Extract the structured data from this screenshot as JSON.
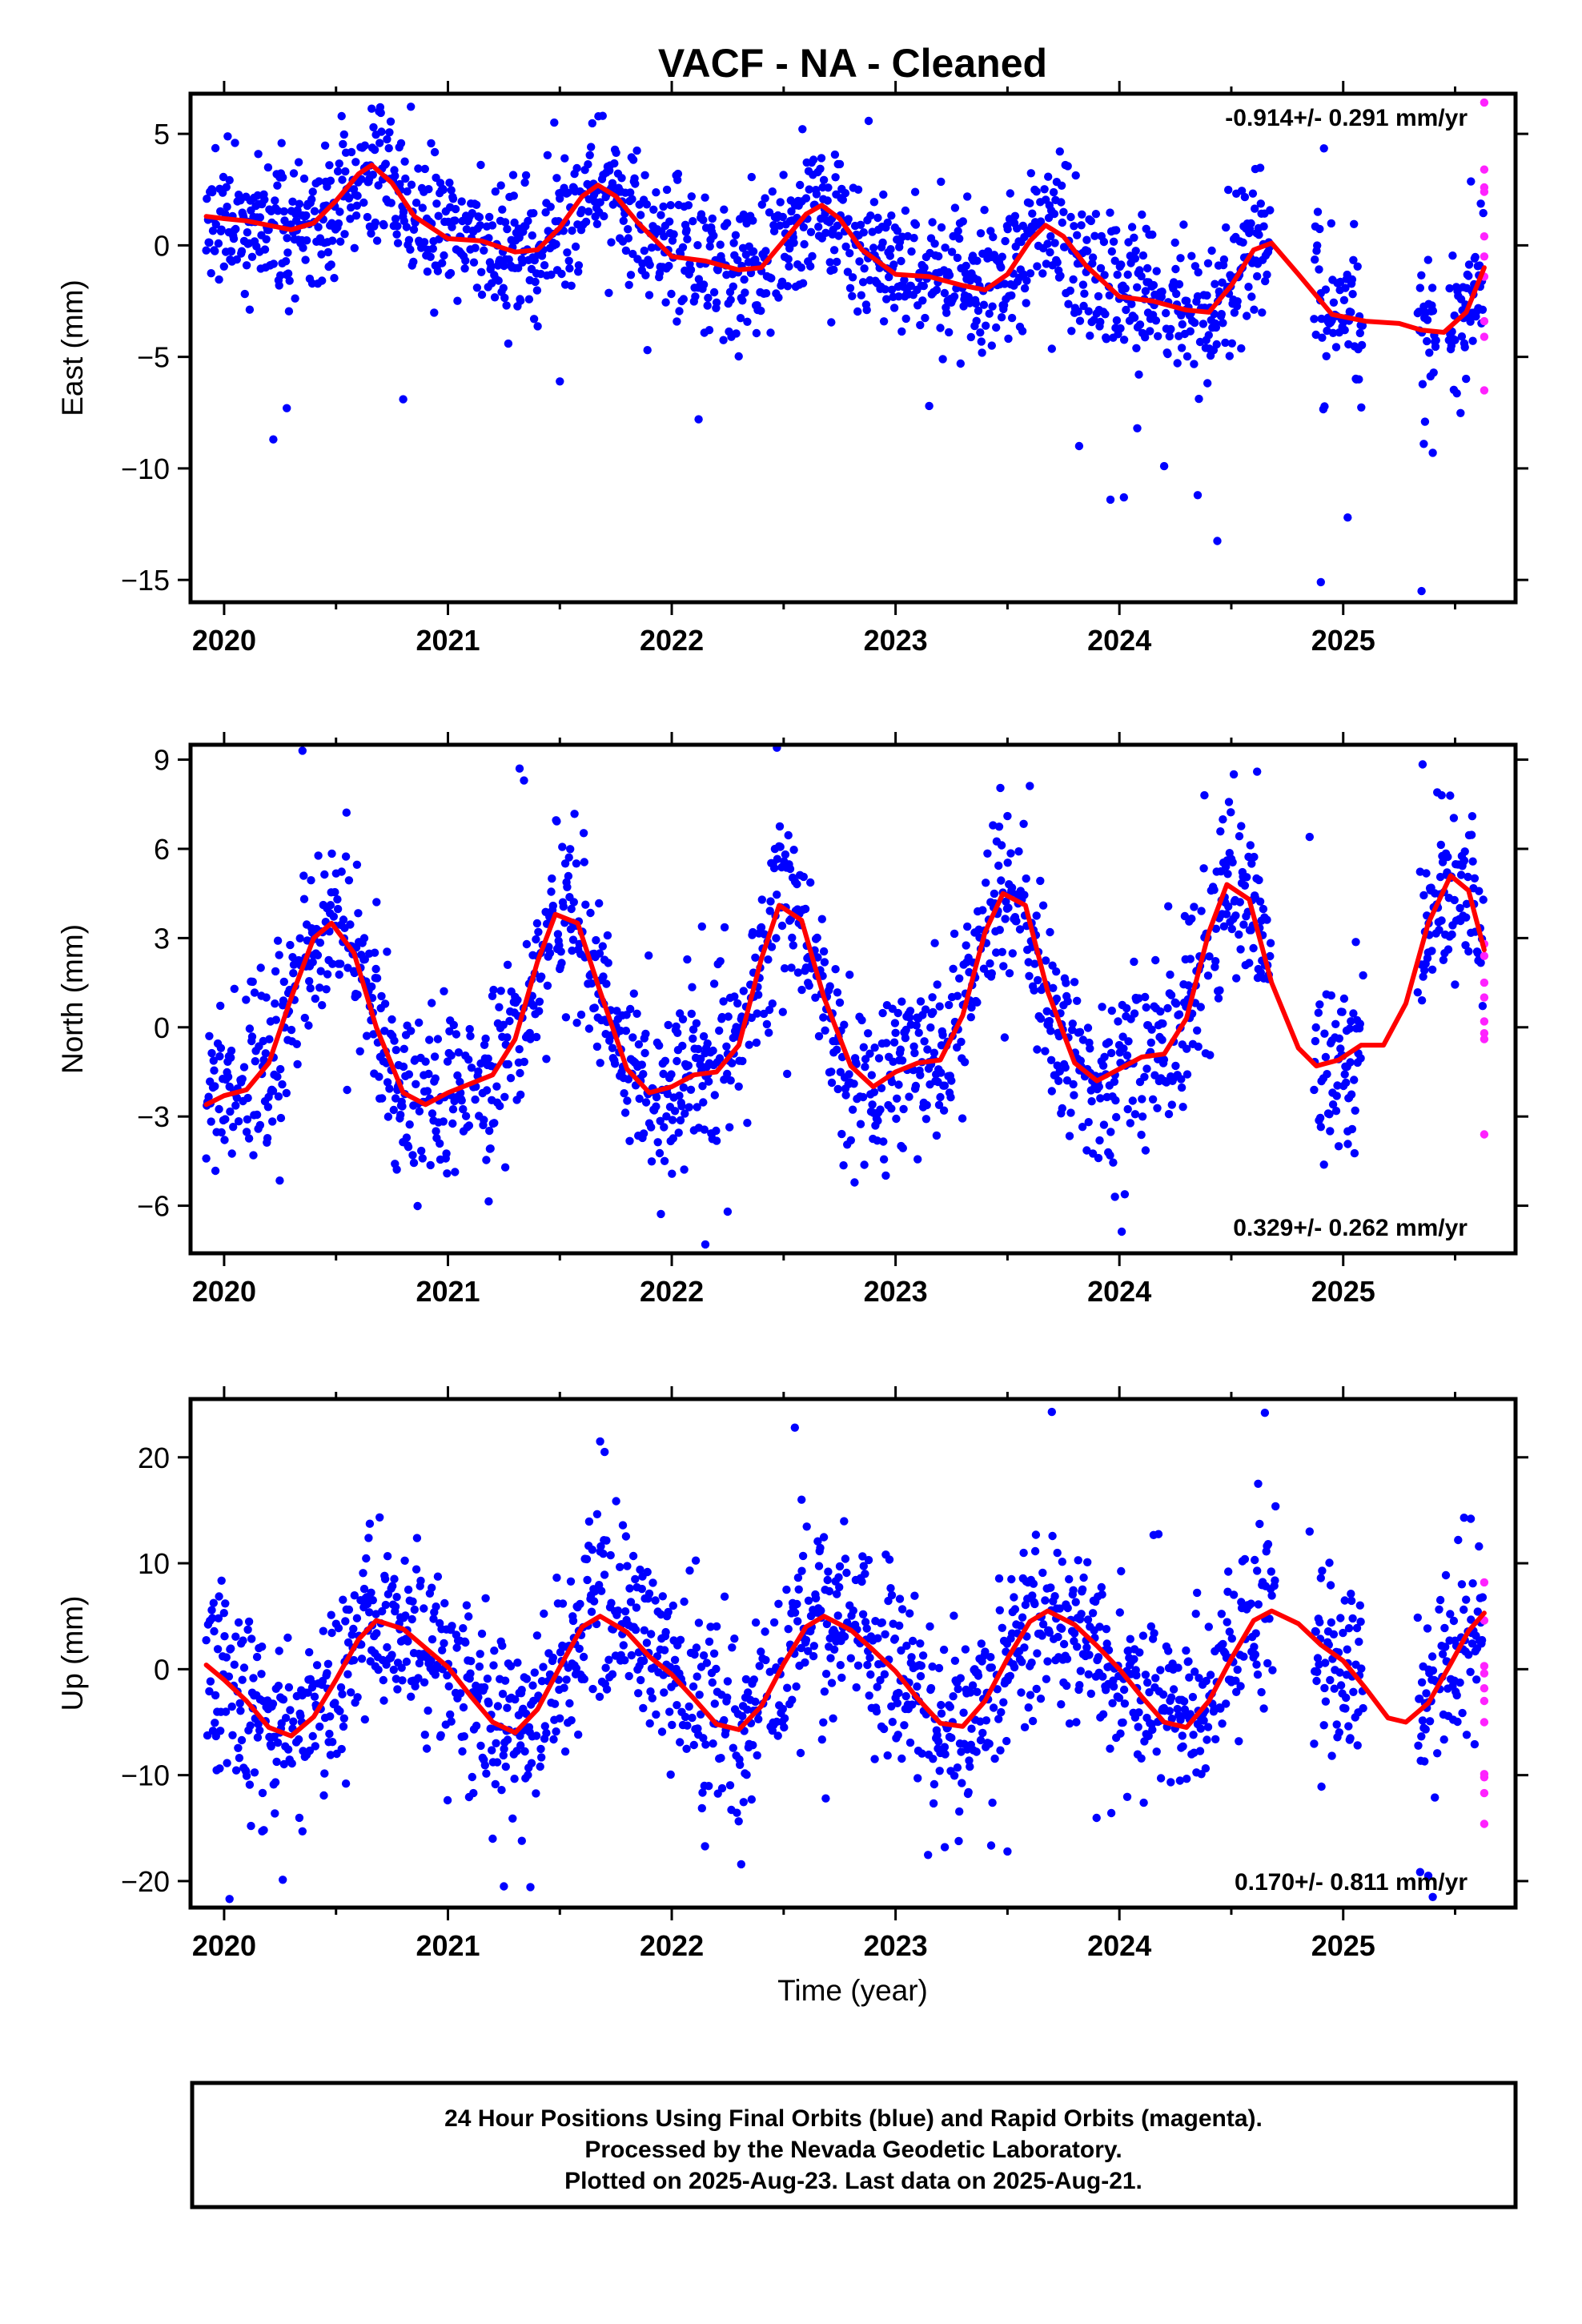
{
  "title": "VACF  - NA - Cleaned",
  "colors": {
    "final": "#0000ff",
    "rapid": "#ff22ff",
    "fit": "#ff0000",
    "frame": "#000000"
  },
  "chart_data": [
    {
      "type": "scatter",
      "ylabel": "East (mm)",
      "xlabel": "",
      "xlim": [
        2019.85,
        2025.77
      ],
      "ylim": [
        -16,
        6.8
      ],
      "yticks": [
        5,
        0,
        -5,
        -10,
        -15
      ],
      "xticks": [
        2020,
        2021,
        2022,
        2023,
        2024,
        2025
      ],
      "rate": "-0.914+/- 0.291 mm/yr",
      "rate_position": "top-right",
      "fit": {
        "x": [
          2019.92,
          2020.0,
          2020.1,
          2020.2,
          2020.3,
          2020.4,
          2020.5,
          2020.6,
          2020.66,
          2020.75,
          2020.85,
          2021.0,
          2021.15,
          2021.3,
          2021.4,
          2021.5,
          2021.6,
          2021.67,
          2021.75,
          2021.85,
          2022.0,
          2022.15,
          2022.3,
          2022.4,
          2022.5,
          2022.6,
          2022.67,
          2022.75,
          2022.85,
          2023.0,
          2023.15,
          2023.3,
          2023.4,
          2023.5,
          2023.6,
          2023.67,
          2023.75,
          2023.85,
          2024.0,
          2024.15,
          2024.3,
          2024.4,
          2024.5,
          2024.6,
          2024.68,
          2024.8,
          2024.95,
          2025.1,
          2025.25,
          2025.35,
          2025.45,
          2025.55,
          2025.63
        ],
        "y": [
          1.3,
          1.2,
          1.1,
          0.9,
          0.7,
          1.0,
          2.0,
          3.2,
          3.6,
          2.8,
          1.3,
          0.3,
          0.2,
          -0.3,
          -0.2,
          0.8,
          2.2,
          2.7,
          2.2,
          1.0,
          -0.5,
          -0.7,
          -1.1,
          -1.0,
          0.2,
          1.4,
          1.8,
          1.2,
          -0.2,
          -1.3,
          -1.4,
          -1.8,
          -2.0,
          -1.3,
          0.2,
          0.9,
          0.4,
          -0.9,
          -2.3,
          -2.5,
          -2.9,
          -3.0,
          -1.8,
          -0.2,
          0.1,
          -1.3,
          -3.1,
          -3.4,
          -3.5,
          -3.8,
          -3.9,
          -3.0,
          -1.0
        ]
      },
      "points": {
        "spread": 1.6,
        "seed": 11,
        "gaps": [
          [
            2024.68,
            2024.87
          ],
          [
            2025.09,
            2025.33
          ],
          [
            2025.42,
            2025.47
          ]
        ],
        "outliers": [
          [
            2020.22,
            -8.7
          ],
          [
            2020.28,
            -7.3
          ],
          [
            2020.8,
            -6.9
          ],
          [
            2021.5,
            -6.1
          ],
          [
            2022.12,
            -7.8
          ],
          [
            2023.15,
            -7.2
          ],
          [
            2023.82,
            -9.0
          ],
          [
            2023.96,
            -11.4
          ],
          [
            2024.02,
            -11.3
          ],
          [
            2024.08,
            -8.2
          ],
          [
            2024.2,
            -9.9
          ],
          [
            2024.35,
            -11.2
          ],
          [
            2024.9,
            -15.1
          ],
          [
            2025.02,
            -12.2
          ],
          [
            2025.35,
            -15.5
          ],
          [
            2025.4,
            -9.3
          ],
          [
            2025.36,
            -8.9
          ]
        ]
      },
      "rapid": {
        "x": 2025.63,
        "y": [
          6.4,
          3.4,
          2.6,
          2.4,
          0.4,
          -0.5,
          -1.4,
          -3.4,
          -4.1,
          -6.5
        ]
      }
    },
    {
      "type": "scatter",
      "ylabel": "North (mm)",
      "xlabel": "",
      "xlim": [
        2019.85,
        2025.77
      ],
      "ylim": [
        -7.6,
        9.5
      ],
      "yticks": [
        9,
        6,
        3,
        0,
        -3,
        -6
      ],
      "xticks": [
        2020,
        2021,
        2022,
        2023,
        2024,
        2025
      ],
      "rate": "0.329+/- 0.262 mm/yr",
      "rate_position": "bottom-right",
      "fit": {
        "x": [
          2019.92,
          2020.0,
          2020.1,
          2020.2,
          2020.3,
          2020.4,
          2020.48,
          2020.58,
          2020.68,
          2020.8,
          2020.9,
          2021.0,
          2021.1,
          2021.2,
          2021.3,
          2021.4,
          2021.48,
          2021.58,
          2021.68,
          2021.8,
          2021.9,
          2022.0,
          2022.1,
          2022.2,
          2022.3,
          2022.4,
          2022.48,
          2022.58,
          2022.68,
          2022.8,
          2022.9,
          2023.0,
          2023.1,
          2023.2,
          2023.3,
          2023.4,
          2023.48,
          2023.58,
          2023.68,
          2023.8,
          2023.9,
          2024.0,
          2024.1,
          2024.2,
          2024.3,
          2024.4,
          2024.48,
          2024.58,
          2024.68,
          2024.8,
          2024.88,
          2024.98,
          2025.08,
          2025.18,
          2025.28,
          2025.38,
          2025.48,
          2025.56,
          2025.63
        ],
        "y": [
          -2.6,
          -2.3,
          -2.1,
          -1.2,
          1.0,
          3.0,
          3.5,
          2.5,
          0.0,
          -2.2,
          -2.6,
          -2.2,
          -1.9,
          -1.6,
          -0.4,
          2.2,
          3.8,
          3.5,
          1.2,
          -1.4,
          -2.2,
          -2.0,
          -1.6,
          -1.5,
          -0.6,
          2.3,
          4.1,
          3.6,
          1.0,
          -1.3,
          -2.0,
          -1.5,
          -1.2,
          -1.1,
          0.4,
          3.2,
          4.5,
          4.1,
          1.2,
          -1.2,
          -1.8,
          -1.4,
          -1.0,
          -0.9,
          0.3,
          3.2,
          4.8,
          4.3,
          1.5,
          -0.7,
          -1.3,
          -1.1,
          -0.6,
          -0.6,
          0.8,
          3.5,
          5.1,
          4.6,
          2.6
        ]
      },
      "points": {
        "spread": 1.4,
        "seed": 23,
        "gaps": [
          [
            2024.68,
            2024.87
          ],
          [
            2025.09,
            2025.33
          ]
        ],
        "outliers": [
          [
            2020.35,
            9.3
          ],
          [
            2021.32,
            8.7
          ],
          [
            2021.34,
            8.3
          ],
          [
            2022.15,
            -7.3
          ],
          [
            2022.25,
            -6.2
          ],
          [
            2022.47,
            9.4
          ],
          [
            2023.5,
            7.1
          ],
          [
            2024.38,
            7.8
          ],
          [
            2023.98,
            -5.7
          ],
          [
            2024.85,
            6.4
          ],
          [
            2025.42,
            7.9
          ],
          [
            2025.44,
            7.8
          ],
          [
            2025.02,
            -3.5
          ],
          [
            2024.98,
            -4.0
          ]
        ]
      },
      "rapid": {
        "x": 2025.63,
        "y": [
          2.8,
          2.4,
          1.5,
          1.0,
          0.2,
          -0.2,
          -0.4,
          -3.6
        ]
      }
    },
    {
      "type": "scatter",
      "ylabel": "Up (mm)",
      "xlabel": "Time (year)",
      "xlim": [
        2019.85,
        2025.77
      ],
      "ylim": [
        -22.5,
        25.5
      ],
      "yticks": [
        20,
        10,
        0,
        -10,
        -20
      ],
      "xticks": [
        2020,
        2021,
        2022,
        2023,
        2024,
        2025
      ],
      "rate": "0.170+/- 0.811 mm/yr",
      "rate_position": "bottom-right",
      "fit": {
        "x": [
          2019.92,
          2020.0,
          2020.1,
          2020.2,
          2020.3,
          2020.4,
          2020.5,
          2020.6,
          2020.68,
          2020.8,
          2020.9,
          2021.0,
          2021.1,
          2021.2,
          2021.3,
          2021.4,
          2021.5,
          2021.6,
          2021.68,
          2021.8,
          2021.9,
          2022.0,
          2022.1,
          2022.2,
          2022.3,
          2022.4,
          2022.5,
          2022.6,
          2022.68,
          2022.8,
          2022.9,
          2023.0,
          2023.1,
          2023.2,
          2023.3,
          2023.4,
          2023.5,
          2023.6,
          2023.68,
          2023.8,
          2023.9,
          2024.0,
          2024.1,
          2024.2,
          2024.3,
          2024.4,
          2024.5,
          2024.6,
          2024.68,
          2024.8,
          2024.9,
          2025.0,
          2025.1,
          2025.2,
          2025.28,
          2025.38,
          2025.48,
          2025.56,
          2025.63
        ],
        "y": [
          0.4,
          -1.0,
          -3.0,
          -5.5,
          -6.3,
          -4.5,
          -1.0,
          2.8,
          4.6,
          3.8,
          2.0,
          0.2,
          -2.5,
          -5.0,
          -6.0,
          -3.8,
          0.2,
          4.0,
          5.0,
          3.5,
          1.2,
          -0.5,
          -2.8,
          -5.2,
          -5.7,
          -3.5,
          0.5,
          4.0,
          5.0,
          3.7,
          1.8,
          -0.2,
          -2.8,
          -5.1,
          -5.4,
          -3.0,
          1.0,
          4.5,
          5.5,
          4.2,
          2.2,
          0.0,
          -2.6,
          -5.0,
          -5.5,
          -3.0,
          1.0,
          4.6,
          5.5,
          4.3,
          2.3,
          0.8,
          -1.8,
          -4.6,
          -5.0,
          -3.2,
          0.5,
          3.6,
          5.3
        ]
      },
      "points": {
        "spread": 4.3,
        "seed": 37,
        "gaps": [
          [
            2024.7,
            2024.87
          ],
          [
            2025.09,
            2025.33
          ]
        ],
        "outliers": [
          [
            2020.12,
            -14.8
          ],
          [
            2020.17,
            -15.3
          ],
          [
            2020.35,
            -15.3
          ],
          [
            2021.2,
            -16.0
          ],
          [
            2021.25,
            -20.5
          ],
          [
            2021.33,
            -16.2
          ],
          [
            2021.68,
            21.5
          ],
          [
            2021.7,
            20.5
          ],
          [
            2022.55,
            22.8
          ],
          [
            2022.58,
            16.0
          ],
          [
            2023.22,
            -16.8
          ],
          [
            2023.5,
            -17.2
          ],
          [
            2024.65,
            24.2
          ],
          [
            2024.62,
            17.5
          ],
          [
            2025.38,
            -19.5
          ],
          [
            2025.4,
            -21.5
          ],
          [
            2025.54,
            14.3
          ],
          [
            2025.57,
            14.2
          ],
          [
            2024.85,
            13.0
          ]
        ]
      },
      "rapid": {
        "x": 2025.63,
        "y": [
          8.2,
          4.6,
          0.3,
          -0.4,
          -1.8,
          -3.0,
          -5.0,
          -9.9,
          -10.2,
          -11.7,
          -14.6
        ]
      }
    }
  ],
  "footer": {
    "line1": "24 Hour Positions Using Final Orbits (blue) and Rapid Orbits (magenta).",
    "line2": "Processed by the Nevada Geodetic Laboratory.",
    "line3": "Plotted on 2025-Aug-23. Last data on 2025-Aug-21."
  }
}
